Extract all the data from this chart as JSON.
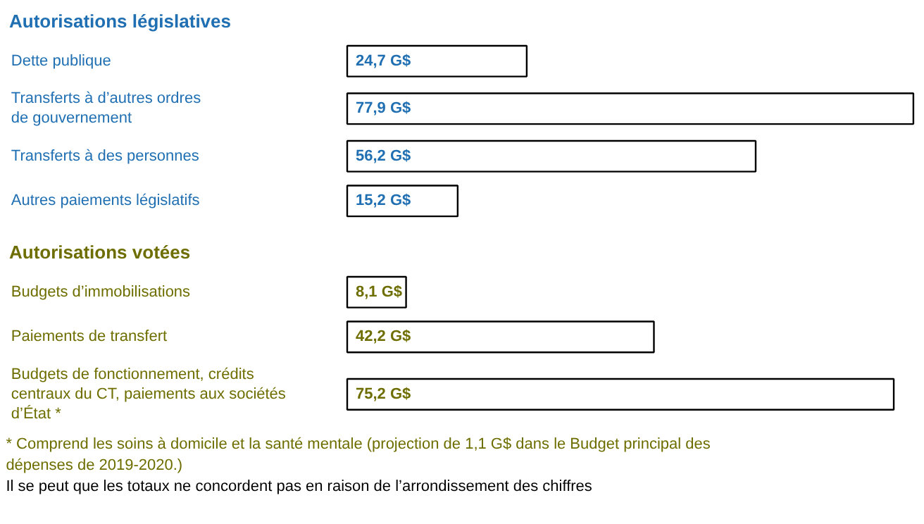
{
  "chart_data": [
    {
      "type": "bar",
      "orientation": "horizontal",
      "title": "Autorisations législatives",
      "categories": [
        "Dette publique",
        "Transferts à d’autres ordres de gouvernement",
        "Transferts à des personnes",
        "Autres paiements législatifs"
      ],
      "color": "#ffffff",
      "values": [
        24.7,
        77.9,
        56.2,
        15.2
      ],
      "value_labels": [
        "24,7 G$",
        "77,9 G$",
        "56,2 G$",
        "15,2 G$"
      ]
    },
    {
      "type": "bar",
      "orientation": "horizontal",
      "title": "Autorisations votées",
      "categories": [
        "Budgets d’immobilisations",
        "Paiements de transfert",
        "Budgets de fonctionnement, crédits centraux du CT, paiements aux sociétés d’État *"
      ],
      "color": "#ffffff",
      "values": [
        8.1,
        42.2,
        75.2
      ],
      "value_labels": [
        "8,1 G$",
        "42,2 G$",
        "75,2 G$"
      ],
      "annotations": [
        "*  Comprend les soins à domicile et la santé mentale (projection de 1,1 G$ dans le Budget principal des dépenses de 2019-2020.)",
        "Il se peut que les totaux ne concordent pas en raison de l’arrondissement des chiffres"
      ]
    }
  ]
}
